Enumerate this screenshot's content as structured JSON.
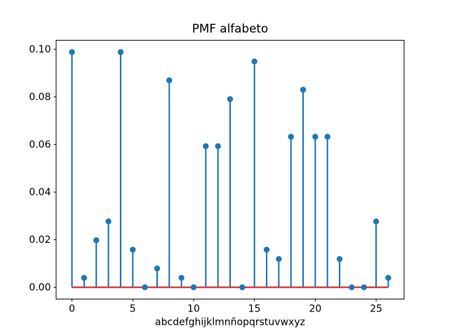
{
  "chart_data": {
    "type": "stem",
    "title": "PMF alfabeto",
    "xlabel": "abcdefghijklmnñopqrstuvwxyz",
    "ylabel": "",
    "categories": [
      "a",
      "b",
      "c",
      "d",
      "e",
      "f",
      "g",
      "h",
      "i",
      "j",
      "k",
      "l",
      "m",
      "n",
      "ñ",
      "o",
      "p",
      "q",
      "r",
      "s",
      "t",
      "u",
      "v",
      "w",
      "x",
      "y",
      "z"
    ],
    "x": [
      0,
      1,
      2,
      3,
      4,
      5,
      6,
      7,
      8,
      9,
      10,
      11,
      12,
      13,
      14,
      15,
      16,
      17,
      18,
      19,
      20,
      21,
      22,
      23,
      24,
      25,
      26
    ],
    "values": [
      0.098814,
      0.003953,
      0.019763,
      0.027668,
      0.098814,
      0.01581,
      0.0,
      0.007905,
      0.086957,
      0.003953,
      0.0,
      0.059289,
      0.059289,
      0.079051,
      0.0,
      0.094862,
      0.01581,
      0.011858,
      0.063241,
      0.083004,
      0.063241,
      0.063241,
      0.011858,
      0.0,
      0.0,
      0.027668,
      0.003953
    ],
    "xticks": [
      0,
      5,
      10,
      15,
      20,
      25
    ],
    "xtick_labels": [
      "0",
      "5",
      "10",
      "15",
      "20",
      "25"
    ],
    "yticks": [
      0.0,
      0.02,
      0.04,
      0.06,
      0.08,
      0.1
    ],
    "ytick_labels": [
      "0.00",
      "0.02",
      "0.04",
      "0.06",
      "0.08",
      "0.10"
    ],
    "xlim": [
      -1.3,
      27.3
    ],
    "ylim": [
      -0.0049407,
      0.1037547
    ],
    "baseline_y": 0.0,
    "baseline_span": [
      0,
      26
    ],
    "grid": false,
    "legend": null,
    "colors": {
      "stem": "#1f77b4",
      "marker": "#1f77b4",
      "baseline": "#d62728",
      "axis": "#000000",
      "background": "#ffffff"
    }
  }
}
